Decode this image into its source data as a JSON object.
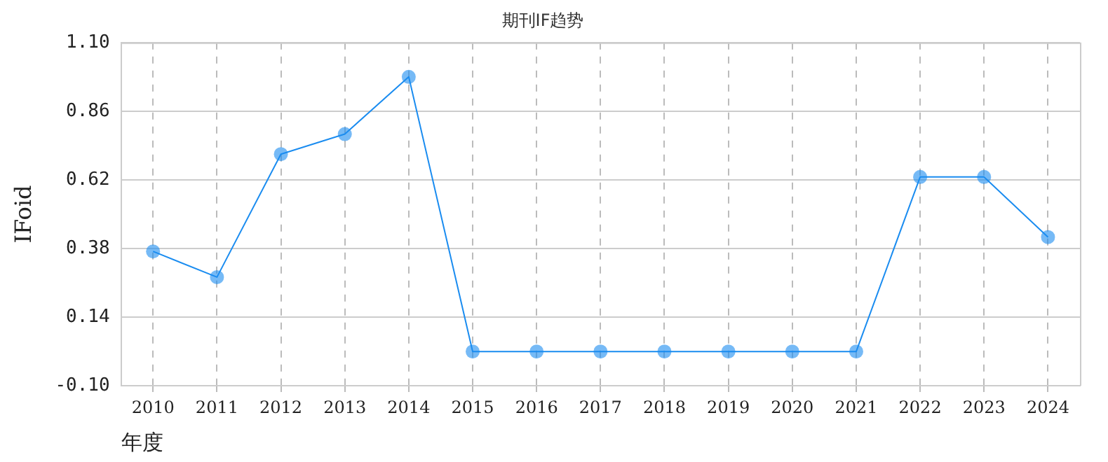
{
  "chart_data": {
    "type": "line",
    "title": "期刊IF趋势",
    "xlabel": "年度",
    "ylabel": "IFoid",
    "categories": [
      "2010",
      "2011",
      "2012",
      "2013",
      "2014",
      "2015",
      "2016",
      "2017",
      "2018",
      "2019",
      "2020",
      "2021",
      "2022",
      "2023",
      "2024"
    ],
    "series": [
      {
        "color": "#1a8cf0",
        "values": [
          0.37,
          0.28,
          0.71,
          0.78,
          0.98,
          0.02,
          0.02,
          0.02,
          0.02,
          0.02,
          0.02,
          0.02,
          0.63,
          0.63,
          0.42
        ]
      }
    ],
    "ylim": [
      -0.1,
      1.1
    ],
    "yticks": [
      {
        "value": -0.1,
        "label": "-0.10"
      },
      {
        "value": 0.14,
        "label": "0.14"
      },
      {
        "value": 0.38,
        "label": "0.38"
      },
      {
        "value": 0.62,
        "label": "0.62"
      },
      {
        "value": 0.86,
        "label": "0.86"
      },
      {
        "value": 1.1,
        "label": "1.10"
      }
    ],
    "grid": true,
    "marker": "circle",
    "line_style": "solid",
    "legend": false
  }
}
